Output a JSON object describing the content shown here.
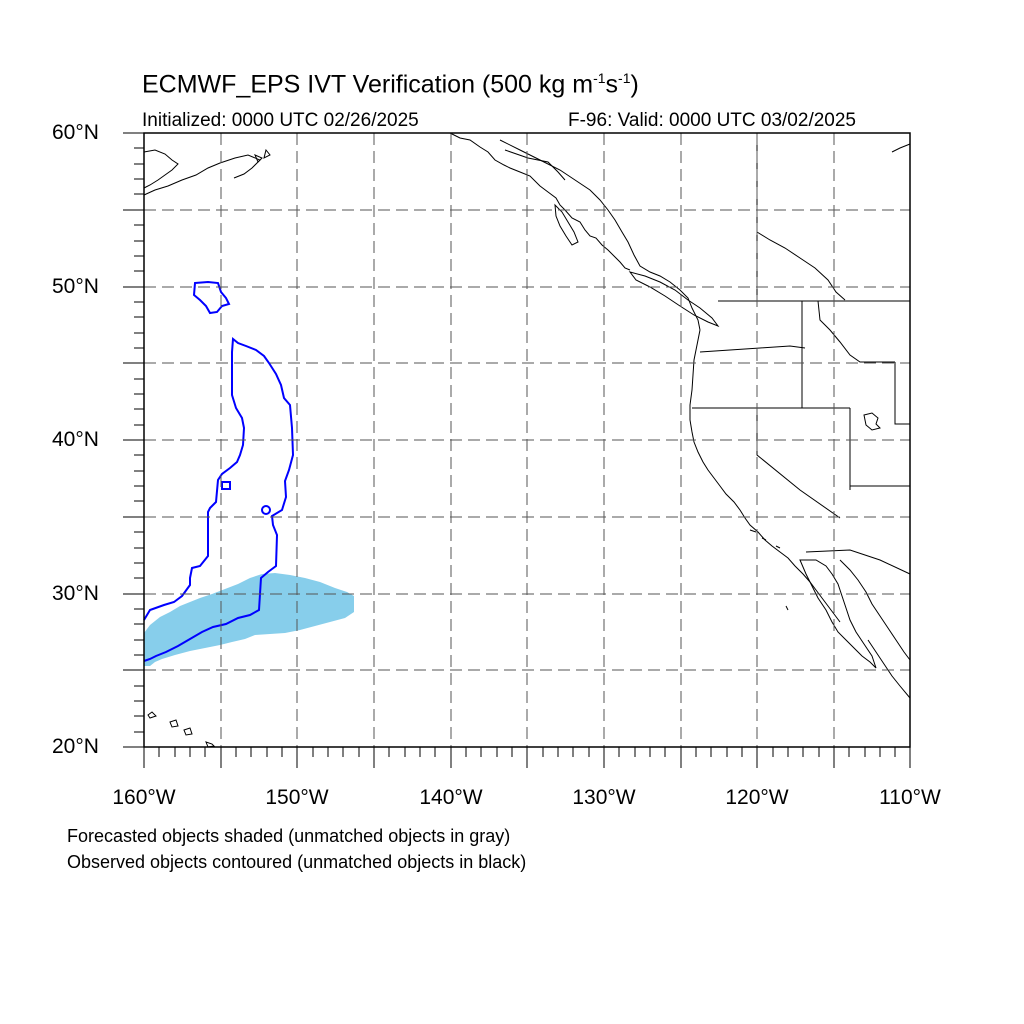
{
  "title": {
    "main": "ECMWF_EPS IVT Verification (500 kg m",
    "exp1": "-1",
    "mid": "s",
    "exp2": "-1",
    "end": ")"
  },
  "initialized": "Initialized: 0000 UTC 02/26/2025",
  "valid": "F-96: Valid: 0000 UTC 03/02/2025",
  "lat_labels": [
    "60°N",
    "50°N",
    "40°N",
    "30°N",
    "20°N"
  ],
  "lon_labels": [
    "160°W",
    "150°W",
    "140°W",
    "130°W",
    "120°W",
    "110°W"
  ],
  "captions": [
    "Forecasted objects shaded (unmatched objects in gray)",
    "Observed objects contoured (unmatched objects in black)"
  ],
  "map_extent": {
    "lon": [
      -160,
      -110
    ],
    "lat": [
      20,
      60
    ]
  },
  "colors": {
    "forecast_fill": "#87ceeb",
    "observed_contour": "#0000ff",
    "coastline": "#000000",
    "grid": "#555555"
  }
}
